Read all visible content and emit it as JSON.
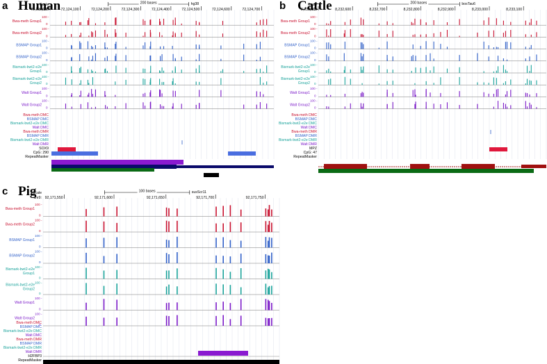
{
  "colors": {
    "bwa_meth": "#c8102e",
    "bsmap": "#2f5fc8",
    "bismark": "#18a29a",
    "walt": "#7a18c8",
    "dmr_red": "#e0183c",
    "dmr_blue": "#4a6ee0",
    "dmr_purple": "#8a1ad0",
    "gene_navy": "#0a0a6a",
    "gene_red": "#a01010",
    "cpg_green": "#0a6a14",
    "repeat": "#000000"
  },
  "panels": [
    {
      "id": "a",
      "letter": "a",
      "title": "Human",
      "scale_label": "Scale",
      "chr_label": "chr17:",
      "scale_bar_text": "200 bases",
      "assembly": "hg38",
      "ticks": [
        "72,124,000",
        "72,124,100",
        "72,124,200",
        "72,124,300",
        "72,124,400",
        "72,124,500",
        "72,124,600",
        "72,124,700"
      ],
      "tracks": [
        {
          "label": "Bwa-meth Group1",
          "color": "bwa_meth"
        },
        {
          "label": "Bwa-meth Group2",
          "color": "bwa_meth"
        },
        {
          "label": "BSMAP Group1",
          "color": "bsmap"
        },
        {
          "label": "BSMAP Group2",
          "color": "bsmap"
        },
        {
          "label": "Bismark-bwt2-e2e Group1",
          "color": "bismark"
        },
        {
          "label": "Bismark-bwt2-e2e Group2",
          "color": "bismark"
        },
        {
          "label": "Walt Group1",
          "color": "walt"
        },
        {
          "label": "Walt Group2",
          "color": "walt"
        }
      ],
      "axis_top": "100 -",
      "axis_zero": "0",
      "feature_labels": [
        {
          "label": "Bwa-meth DMC",
          "color": "bwa_meth"
        },
        {
          "label": "BSMAP DMC",
          "color": "bsmap"
        },
        {
          "label": "Bismark-bwt2-e2e DMC",
          "color": "bismark"
        },
        {
          "label": "Walt DMC",
          "color": "walt"
        },
        {
          "label": "Bwa-meth DMR",
          "color": "bwa_meth"
        },
        {
          "label": "BSMAP DMR",
          "color": "bsmap"
        },
        {
          "label": "Bismark-bwt2-e2e DMR",
          "color": "bismark"
        },
        {
          "label": "Walt DMR",
          "color": "walt"
        },
        {
          "label": "SOX9",
          "color": "repeat"
        },
        {
          "label": "CpG: 290",
          "color": "repeat"
        },
        {
          "label": "RepeatMasker",
          "color": "repeat"
        }
      ]
    },
    {
      "id": "b",
      "letter": "b",
      "title": "Cattle",
      "scale_label": "Scale",
      "chr_label": "chr3:",
      "scale_bar_text": "200 bases",
      "assembly": "bosTau6",
      "ticks": [
        "8,232,500",
        "8,232,600",
        "8,232,700",
        "8,232,800",
        "8,232,900",
        "8,233,000",
        "8,233,100"
      ],
      "tracks": [
        {
          "label": "Bwa-meth Group1",
          "color": "bwa_meth"
        },
        {
          "label": "Bwa-meth Group2",
          "color": "bwa_meth"
        },
        {
          "label": "BSMAP Group1",
          "color": "bsmap"
        },
        {
          "label": "BSMAP Group2",
          "color": "bsmap"
        },
        {
          "label": "Bismark-bwt2-e2e Group1",
          "color": "bismark"
        },
        {
          "label": "Bismark-bwt2-e2e Group2",
          "color": "bismark"
        },
        {
          "label": "Walt Group1",
          "color": "walt"
        },
        {
          "label": "Walt Group2",
          "color": "walt"
        }
      ],
      "axis_top": "100 -",
      "axis_zero": "0",
      "feature_labels": [
        {
          "label": "Bwa-meth DMC",
          "color": "bwa_meth"
        },
        {
          "label": "BSMAP DMC",
          "color": "bsmap"
        },
        {
          "label": "Bismark-bwt2-e2e DMC",
          "color": "bismark"
        },
        {
          "label": "Walt DMC",
          "color": "walt"
        },
        {
          "label": "Bwa-meth DMR",
          "color": "bwa_meth"
        },
        {
          "label": "BSMAP DMR",
          "color": "bsmap"
        },
        {
          "label": "Bismark-bwt2-e2e DMR",
          "color": "bismark"
        },
        {
          "label": "Walt DMR",
          "color": "walt"
        },
        {
          "label": "MPZ",
          "color": "repeat"
        },
        {
          "label": "CpG: 47",
          "color": "repeat"
        },
        {
          "label": "RepeatMasker",
          "color": "repeat"
        }
      ]
    },
    {
      "id": "c",
      "letter": "c",
      "title": "Pig",
      "scale_label": "Scale",
      "chr_label": "chr9:",
      "scale_bar_text": "100 bases",
      "assembly": "susScr11",
      "ticks": [
        "92,171,550",
        "92,171,600",
        "92,171,650",
        "92,171,700",
        "92,171,750"
      ],
      "tracks": [
        {
          "label": "Bwa-meth Group1",
          "color": "bwa_meth"
        },
        {
          "label": "Bwa-meth Group2",
          "color": "bwa_meth"
        },
        {
          "label": "BSMAP Group1",
          "color": "bsmap"
        },
        {
          "label": "BSMAP Group2",
          "color": "bsmap"
        },
        {
          "label": "Bismark-bwt2-e2e Group1",
          "color": "bismark"
        },
        {
          "label": "Bismark-bwt2-e2e Group2",
          "color": "bismark"
        },
        {
          "label": "Walt Group1",
          "color": "walt"
        },
        {
          "label": "Walt Group2",
          "color": "walt"
        }
      ],
      "axis_top": "100 -",
      "axis_zero": "0",
      "feature_labels": [
        {
          "label": "Bwa-meth DMC",
          "color": "bwa_meth"
        },
        {
          "label": "BSMAP DMC",
          "color": "bsmap"
        },
        {
          "label": "Bismark-bwt2-e2e DMC",
          "color": "bismark"
        },
        {
          "label": "Walt DMC",
          "color": "walt"
        },
        {
          "label": "Bwa-meth DMR",
          "color": "bwa_meth"
        },
        {
          "label": "BSMAP DMR",
          "color": "bsmap"
        },
        {
          "label": "Bismark-bwt2-e2e DMR",
          "color": "bismark"
        },
        {
          "label": "Walt DMR",
          "color": "walt"
        },
        {
          "label": "H2FBP3",
          "color": "repeat"
        },
        {
          "label": "RepeatMasker",
          "color": "repeat"
        }
      ]
    }
  ]
}
